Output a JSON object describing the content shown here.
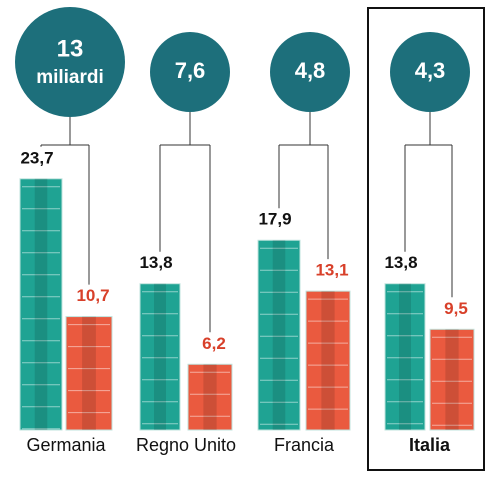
{
  "chart_data": {
    "type": "bar",
    "categories": [
      "Germania",
      "Regno Unito",
      "Francia",
      "Italia"
    ],
    "highlight": "Italia",
    "differences": [
      13,
      7.6,
      4.8,
      4.3
    ],
    "difference_labels": [
      "13",
      "7,6",
      "4,8",
      "4,3"
    ],
    "difference_unit": "miliardi",
    "difference_color": "#1d6f7b",
    "series": [
      {
        "color": "#1fa393",
        "values": [
          23.7,
          13.8,
          17.9,
          13.8
        ],
        "value_labels": [
          "23,7",
          "13,8",
          "17,9",
          "13,8"
        ],
        "label_color": "#111111"
      },
      {
        "color": "#ea5a3f",
        "values": [
          10.7,
          6.2,
          13.1,
          9.5
        ],
        "value_labels": [
          "10,7",
          "6,2",
          "13,1",
          "9,5"
        ],
        "label_color": "#d8402a"
      }
    ]
  }
}
